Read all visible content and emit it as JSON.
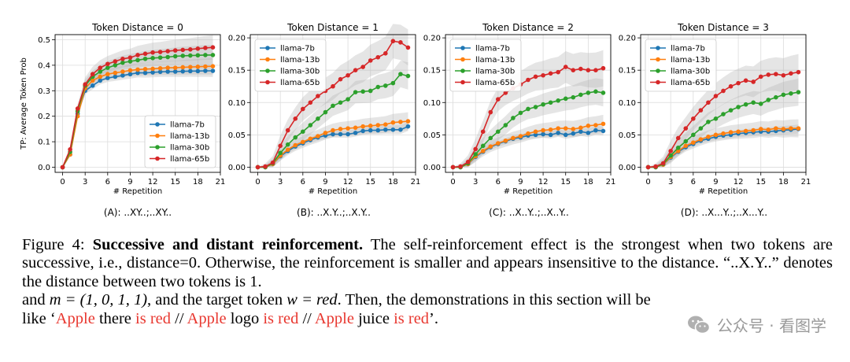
{
  "chart_data": [
    {
      "type": "line",
      "title": "Token Distance = 0",
      "xlabel": "# Repetition",
      "ylabel": "TP: Average Token Prob",
      "xlim": [
        -1,
        21
      ],
      "ylim": [
        -0.02,
        0.52
      ],
      "xticks": [
        0,
        3,
        6,
        9,
        12,
        15,
        18,
        21
      ],
      "yticks": [
        0.0,
        0.1,
        0.2,
        0.3,
        0.4,
        0.5
      ],
      "ytick_labels": [
        "0.0",
        "0.1",
        "0.2",
        "0.3",
        "0.4",
        "0.5"
      ],
      "grid": true,
      "legend_position": "lower-right",
      "x": [
        0,
        1,
        2,
        3,
        4,
        5,
        6,
        7,
        8,
        9,
        10,
        11,
        12,
        13,
        14,
        15,
        16,
        17,
        18,
        19,
        20
      ],
      "series": [
        {
          "name": "llama-7b",
          "color": "#1f77b4",
          "values": [
            0.0,
            0.05,
            0.21,
            0.3,
            0.32,
            0.34,
            0.35,
            0.355,
            0.36,
            0.365,
            0.37,
            0.37,
            0.372,
            0.374,
            0.375,
            0.375,
            0.376,
            0.377,
            0.377,
            0.378,
            0.378
          ]
        },
        {
          "name": "llama-13b",
          "color": "#ff7f0e",
          "values": [
            0.0,
            0.05,
            0.2,
            0.31,
            0.34,
            0.355,
            0.365,
            0.37,
            0.375,
            0.38,
            0.383,
            0.385,
            0.386,
            0.388,
            0.39,
            0.39,
            0.392,
            0.393,
            0.394,
            0.395,
            0.396
          ]
        },
        {
          "name": "llama-30b",
          "color": "#2ca02c",
          "values": [
            0.0,
            0.06,
            0.22,
            0.32,
            0.355,
            0.375,
            0.39,
            0.4,
            0.41,
            0.415,
            0.42,
            0.425,
            0.428,
            0.43,
            0.432,
            0.435,
            0.437,
            0.438,
            0.439,
            0.44,
            0.44
          ]
        },
        {
          "name": "llama-65b",
          "color": "#d62728",
          "values": [
            0.0,
            0.07,
            0.23,
            0.325,
            0.365,
            0.39,
            0.405,
            0.415,
            0.425,
            0.43,
            0.44,
            0.445,
            0.45,
            0.452,
            0.455,
            0.458,
            0.46,
            0.462,
            0.465,
            0.468,
            0.47
          ]
        }
      ]
    },
    {
      "type": "line",
      "title": "Token Distance = 1",
      "xlabel": "# Repetition",
      "ylabel": "",
      "xlim": [
        -1,
        21
      ],
      "ylim": [
        -0.008,
        0.205
      ],
      "xticks": [
        0,
        3,
        6,
        9,
        12,
        15,
        18,
        21
      ],
      "yticks": [
        0.0,
        0.05,
        0.1,
        0.15,
        0.2
      ],
      "ytick_labels": [
        "0.00",
        "0.05",
        "0.10",
        "0.15",
        "0.20"
      ],
      "grid": true,
      "legend_position": "upper-left",
      "x": [
        0,
        1,
        2,
        3,
        4,
        5,
        6,
        7,
        8,
        9,
        10,
        11,
        12,
        13,
        14,
        15,
        16,
        17,
        18,
        19,
        20
      ],
      "series": [
        {
          "name": "llama-7b",
          "color": "#1f77b4",
          "values": [
            0.0,
            0.0,
            0.005,
            0.017,
            0.025,
            0.032,
            0.037,
            0.042,
            0.046,
            0.049,
            0.051,
            0.051,
            0.051,
            0.053,
            0.056,
            0.057,
            0.057,
            0.058,
            0.058,
            0.058,
            0.063
          ]
        },
        {
          "name": "llama-13b",
          "color": "#ff7f0e",
          "values": [
            0.0,
            0.0,
            0.005,
            0.018,
            0.027,
            0.034,
            0.039,
            0.044,
            0.048,
            0.053,
            0.057,
            0.059,
            0.06,
            0.061,
            0.063,
            0.064,
            0.065,
            0.066,
            0.069,
            0.07,
            0.071
          ]
        },
        {
          "name": "llama-30b",
          "color": "#2ca02c",
          "values": [
            0.0,
            0.0,
            0.006,
            0.022,
            0.035,
            0.046,
            0.055,
            0.065,
            0.075,
            0.085,
            0.095,
            0.1,
            0.105,
            0.116,
            0.117,
            0.118,
            0.124,
            0.126,
            0.13,
            0.144,
            0.141
          ]
        },
        {
          "name": "llama-65b",
          "color": "#d62728",
          "values": [
            0.0,
            0.001,
            0.007,
            0.033,
            0.057,
            0.075,
            0.09,
            0.1,
            0.11,
            0.118,
            0.125,
            0.136,
            0.142,
            0.15,
            0.155,
            0.165,
            0.17,
            0.176,
            0.195,
            0.193,
            0.185
          ]
        }
      ]
    },
    {
      "type": "line",
      "title": "Token Distance = 2",
      "xlabel": "# Repetition",
      "ylabel": "",
      "xlim": [
        -1,
        21
      ],
      "ylim": [
        -0.008,
        0.205
      ],
      "xticks": [
        0,
        3,
        6,
        9,
        12,
        15,
        18,
        21
      ],
      "yticks": [
        0.0,
        0.05,
        0.1,
        0.15,
        0.2
      ],
      "ytick_labels": [
        "0.00",
        "0.05",
        "0.10",
        "0.15",
        "0.20"
      ],
      "grid": true,
      "legend_position": "upper-left",
      "x": [
        0,
        1,
        2,
        3,
        4,
        5,
        6,
        7,
        8,
        9,
        10,
        11,
        12,
        13,
        14,
        15,
        16,
        17,
        18,
        19,
        20
      ],
      "series": [
        {
          "name": "llama-7b",
          "color": "#1f77b4",
          "values": [
            0.0,
            0.0,
            0.005,
            0.016,
            0.024,
            0.031,
            0.036,
            0.04,
            0.044,
            0.046,
            0.049,
            0.05,
            0.051,
            0.05,
            0.053,
            0.05,
            0.052,
            0.055,
            0.053,
            0.057,
            0.056
          ]
        },
        {
          "name": "llama-13b",
          "color": "#ff7f0e",
          "values": [
            0.0,
            0.0,
            0.005,
            0.017,
            0.025,
            0.032,
            0.037,
            0.041,
            0.045,
            0.048,
            0.052,
            0.055,
            0.057,
            0.058,
            0.06,
            0.06,
            0.059,
            0.061,
            0.064,
            0.065,
            0.067
          ]
        },
        {
          "name": "llama-30b",
          "color": "#2ca02c",
          "values": [
            0.0,
            0.0,
            0.006,
            0.02,
            0.033,
            0.045,
            0.055,
            0.065,
            0.076,
            0.084,
            0.09,
            0.093,
            0.097,
            0.1,
            0.103,
            0.106,
            0.108,
            0.112,
            0.115,
            0.117,
            0.115
          ]
        },
        {
          "name": "llama-65b",
          "color": "#d62728",
          "values": [
            0.0,
            0.001,
            0.008,
            0.028,
            0.055,
            0.085,
            0.105,
            0.115,
            0.122,
            0.128,
            0.135,
            0.14,
            0.142,
            0.145,
            0.147,
            0.155,
            0.15,
            0.152,
            0.15,
            0.15,
            0.153
          ]
        }
      ]
    },
    {
      "type": "line",
      "title": "Token Distance = 3",
      "xlabel": "# Repetition",
      "ylabel": "",
      "xlim": [
        -1,
        21
      ],
      "ylim": [
        -0.008,
        0.205
      ],
      "xticks": [
        0,
        3,
        6,
        9,
        12,
        15,
        18,
        21
      ],
      "yticks": [
        0.0,
        0.05,
        0.1,
        0.15,
        0.2
      ],
      "ytick_labels": [
        "0.00",
        "0.05",
        "0.10",
        "0.15",
        "0.20"
      ],
      "grid": true,
      "legend_position": "upper-left",
      "x": [
        0,
        1,
        2,
        3,
        4,
        5,
        6,
        7,
        8,
        9,
        10,
        11,
        12,
        13,
        14,
        15,
        16,
        17,
        18,
        19,
        20
      ],
      "series": [
        {
          "name": "llama-7b",
          "color": "#1f77b4",
          "values": [
            0.0,
            0.0,
            0.004,
            0.015,
            0.024,
            0.031,
            0.036,
            0.041,
            0.044,
            0.047,
            0.049,
            0.05,
            0.052,
            0.053,
            0.054,
            0.055,
            0.055,
            0.056,
            0.057,
            0.058,
            0.059
          ]
        },
        {
          "name": "llama-13b",
          "color": "#ff7f0e",
          "values": [
            0.0,
            0.0,
            0.004,
            0.016,
            0.025,
            0.033,
            0.038,
            0.043,
            0.047,
            0.05,
            0.052,
            0.054,
            0.055,
            0.056,
            0.057,
            0.059,
            0.058,
            0.06,
            0.059,
            0.06,
            0.06
          ]
        },
        {
          "name": "llama-30b",
          "color": "#2ca02c",
          "values": [
            0.0,
            0.0,
            0.005,
            0.018,
            0.03,
            0.04,
            0.05,
            0.06,
            0.07,
            0.075,
            0.082,
            0.088,
            0.093,
            0.097,
            0.1,
            0.098,
            0.104,
            0.108,
            0.112,
            0.114,
            0.116
          ]
        },
        {
          "name": "llama-65b",
          "color": "#d62728",
          "values": [
            0.0,
            0.001,
            0.006,
            0.025,
            0.045,
            0.06,
            0.075,
            0.088,
            0.1,
            0.11,
            0.118,
            0.125,
            0.13,
            0.134,
            0.132,
            0.14,
            0.143,
            0.144,
            0.142,
            0.145,
            0.147
          ]
        }
      ]
    }
  ],
  "panel_captions": [
    "(A): ..XY..;..XY..",
    "(B): ..X.Y..;..X.Y..",
    "(C): ..X..Y..;..X..Y..",
    "(D): ..X...Y..;..X...Y.."
  ],
  "caption": {
    "figure_label": "Figure 4: ",
    "bold_title": "Successive and distant reinforcement.",
    "body": " The self-reinforcement effect is the strongest when two tokens are successive, i.e., distance=0. Otherwise, the reinforcement is smaller and appears insensitive to the distance. “..X.Y..” denotes the distance between two tokens is 1.",
    "line2_pre": "and ",
    "m_eq": "m = (1, 0, 1, 1)",
    "line2_mid": ", and the target token ",
    "w_eq": "w = red",
    "line2_post": ". Then, the demonstrations in this section will be",
    "line3_open": "like ‘",
    "apple1": "Apple",
    "there": " there ",
    "isred1": "is red",
    "sep1": " // ",
    "apple2": "Apple",
    "logo": " logo ",
    "isred2": "is red",
    "sep2": " // ",
    "apple3": "Apple",
    "juice": " juice ",
    "isred3": "is red",
    "close": "’."
  },
  "watermark": {
    "text": "公众号 · 看图学",
    "icon": "wechat-icon"
  }
}
